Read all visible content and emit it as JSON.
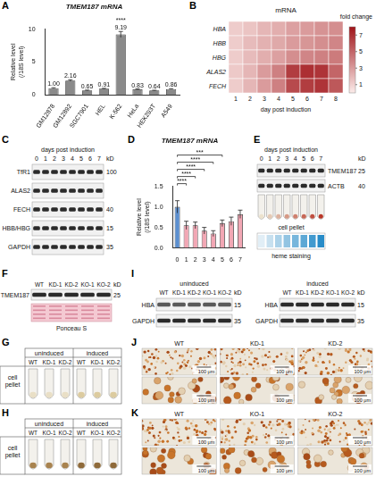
{
  "chart_data": [
    {
      "panel": "A",
      "type": "bar",
      "title": "TMEM187 mRNA",
      "y_label": "Relative level (/18S level)",
      "categories": [
        "GM12878",
        "GM12892",
        "SGC7901",
        "HEL",
        "K-562",
        "HeLa",
        "HEK293T",
        "A549"
      ],
      "values": [
        1.0,
        2.16,
        0.65,
        0.91,
        9.19,
        0.83,
        0.64,
        0.86
      ],
      "value_labels": [
        "1.00",
        "2.16",
        "0.65",
        "0.91",
        "9.19",
        "0.83",
        "0.64",
        "0.86"
      ],
      "errors": [
        0.06,
        0.12,
        0.05,
        0.06,
        0.45,
        0.05,
        0.04,
        0.05
      ],
      "color": "#8a8a8a",
      "data_labels": true,
      "grid": false,
      "ylim": [
        0,
        10
      ],
      "yticks": [
        0,
        5,
        10
      ],
      "annotations": [
        {
          "category": "K-562",
          "text": "****"
        }
      ]
    },
    {
      "panel": "B",
      "type": "heatmap",
      "title": "mRNA",
      "x_label": "day post induction",
      "rows": [
        "HBA",
        "HBB",
        "HBG",
        "ALAS2",
        "FECH"
      ],
      "columns": [
        1,
        2,
        3,
        4,
        5,
        6,
        7,
        8
      ],
      "cells": [
        [
          1.2,
          1.5,
          2.0,
          2.3,
          2.8,
          3.0,
          3.3,
          3.5
        ],
        [
          1.2,
          1.8,
          2.2,
          2.5,
          3.0,
          3.2,
          3.5,
          3.8
        ],
        [
          1.2,
          1.8,
          2.3,
          2.8,
          3.5,
          3.8,
          4.0,
          4.2
        ],
        [
          1.3,
          2.0,
          3.0,
          4.0,
          6.5,
          7.0,
          6.8,
          5.0
        ],
        [
          1.2,
          2.0,
          3.0,
          4.0,
          6.0,
          6.5,
          6.8,
          5.5
        ]
      ],
      "colorbar": {
        "title": "fold change",
        "range": [
          0,
          8
        ],
        "ticks": [
          1,
          3,
          5,
          7
        ]
      }
    },
    {
      "panel": "D",
      "type": "bar",
      "title": "TMEM187 mRNA",
      "y_label": "Relative level (/18S level)",
      "categories": [
        "0",
        "1",
        "2",
        "3",
        "4",
        "5",
        "6",
        "7"
      ],
      "values": [
        1.0,
        0.55,
        0.55,
        0.42,
        0.35,
        0.6,
        0.65,
        0.82
      ],
      "errors": [
        0.15,
        0.1,
        0.08,
        0.08,
        0.07,
        0.08,
        0.1,
        0.1
      ],
      "colors": [
        "#5b8fd0",
        "#f2a7b4",
        "#f2a7b4",
        "#f2a7b4",
        "#f2a7b4",
        "#f2a7b4",
        "#f2a7b4",
        "#f2a7b4"
      ],
      "grid": false,
      "ylim": [
        0,
        1.5
      ],
      "yticks": [
        {
          "value": 0,
          "label": "0.0"
        },
        {
          "value": 0.5,
          "label": "0.5"
        },
        {
          "value": 1,
          "label": "1.0"
        },
        {
          "value": 1.5,
          "label": "1.5"
        }
      ],
      "annotations": [
        {
          "from": "0",
          "to": "1",
          "text": "****"
        },
        {
          "from": "0",
          "to": "2",
          "text": "****"
        },
        {
          "from": "0",
          "to": "3",
          "text": "****"
        },
        {
          "from": "0",
          "to": "4",
          "text": "****"
        },
        {
          "from": "0",
          "to": "5",
          "text": "***"
        }
      ]
    }
  ],
  "panels": [
    {
      "panel": "C",
      "type": "western_blot",
      "header": "days post induction",
      "lanes": [
        "0",
        "1",
        "2",
        "3",
        "4",
        "5",
        "6",
        "7"
      ],
      "unit": "kD",
      "rows": [
        {
          "label": "TfR1",
          "kD": "100"
        },
        {
          "label": "ALAS2"
        },
        {
          "label": "FECH",
          "kD": "40"
        },
        {
          "label": "HBB/HBG",
          "kD": "15"
        },
        {
          "label": "GAPDH",
          "kD": "35"
        }
      ]
    },
    {
      "panel": "E",
      "type": "western_blot",
      "header": "days post induction",
      "lanes": [
        "0",
        "1",
        "2",
        "3",
        "4",
        "5",
        "6",
        "7"
      ],
      "unit": "kD",
      "rows": [
        {
          "label": "TMEM187",
          "kD": "25"
        },
        {
          "label": "ACTB",
          "kD": "40"
        }
      ],
      "images": [
        "cell pellet",
        "heme staining"
      ]
    },
    {
      "panel": "F",
      "type": "western_blot",
      "lanes": [
        "WT",
        "KD-1",
        "KD-2",
        "KO-1",
        "KO-2"
      ],
      "unit": "kD",
      "rows": [
        {
          "label": "TMEM187",
          "kD": "25"
        }
      ],
      "stain": "Ponceau S"
    },
    {
      "panel": "G",
      "type": "pellet_table",
      "groups": [
        "uninduced",
        "induced"
      ],
      "lanes": [
        "WT",
        "KD-1",
        "KD-2"
      ],
      "row_label": "cell pellet"
    },
    {
      "panel": "H",
      "type": "pellet_table",
      "groups": [
        "uninduced",
        "induced"
      ],
      "lanes": [
        "WT",
        "KO-1",
        "KO-2"
      ],
      "row_label": "cell pellet"
    },
    {
      "panel": "I",
      "type": "western_blot",
      "groups": [
        "uninduced",
        "induced"
      ],
      "lanes": [
        "WT",
        "KD-1",
        "KD-2",
        "KO-1",
        "KO-2"
      ],
      "unit": "kD",
      "rows": [
        {
          "label": "HBA",
          "kD": "15"
        },
        {
          "label": "GAPDH",
          "kD": "35"
        }
      ]
    },
    {
      "panel": "J",
      "type": "micrographs",
      "samples": [
        "WT",
        "KD-1",
        "KD-2"
      ],
      "scale_bar": "100 μm"
    },
    {
      "panel": "K",
      "type": "micrographs",
      "samples": [
        "WT",
        "KO-1",
        "KO-2"
      ],
      "scale_bar": "100 μm"
    }
  ]
}
